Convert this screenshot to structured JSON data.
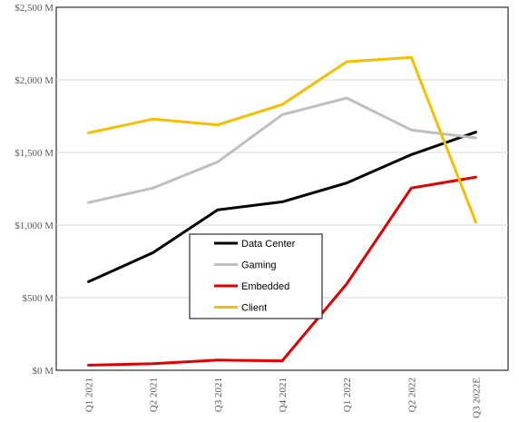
{
  "chart_data": {
    "type": "line",
    "title": "",
    "xlabel": "",
    "ylabel": "",
    "categories": [
      "Q1 2021",
      "Q2 2021",
      "Q3 2021",
      "Q4 2021",
      "Q1 2022",
      "Q2 2022",
      "Q3 2022E"
    ],
    "ylim": [
      0,
      2500
    ],
    "yticks": [
      0,
      500,
      1000,
      1500,
      2000,
      2500
    ],
    "ytick_labels": [
      "$0 M",
      "$500 M",
      "$1,000 M",
      "$1,500 M",
      "$2,000 M",
      "$2,500 M"
    ],
    "grid": "horizontal",
    "legend_position": "center",
    "series": [
      {
        "name": "Data Center",
        "color": "#000000",
        "values": [
          610,
          810,
          1105,
          1160,
          1290,
          1485,
          1640
        ]
      },
      {
        "name": "Gaming",
        "color": "#bfbfbf",
        "values": [
          1155,
          1255,
          1435,
          1760,
          1875,
          1655,
          1600
        ]
      },
      {
        "name": "Embedded",
        "color": "#e00000",
        "values": [
          35,
          45,
          70,
          65,
          595,
          1255,
          1330
        ]
      },
      {
        "name": "Client",
        "color": "#f5bf00",
        "values": [
          1635,
          1730,
          1690,
          1830,
          2125,
          2155,
          1020
        ]
      }
    ]
  }
}
